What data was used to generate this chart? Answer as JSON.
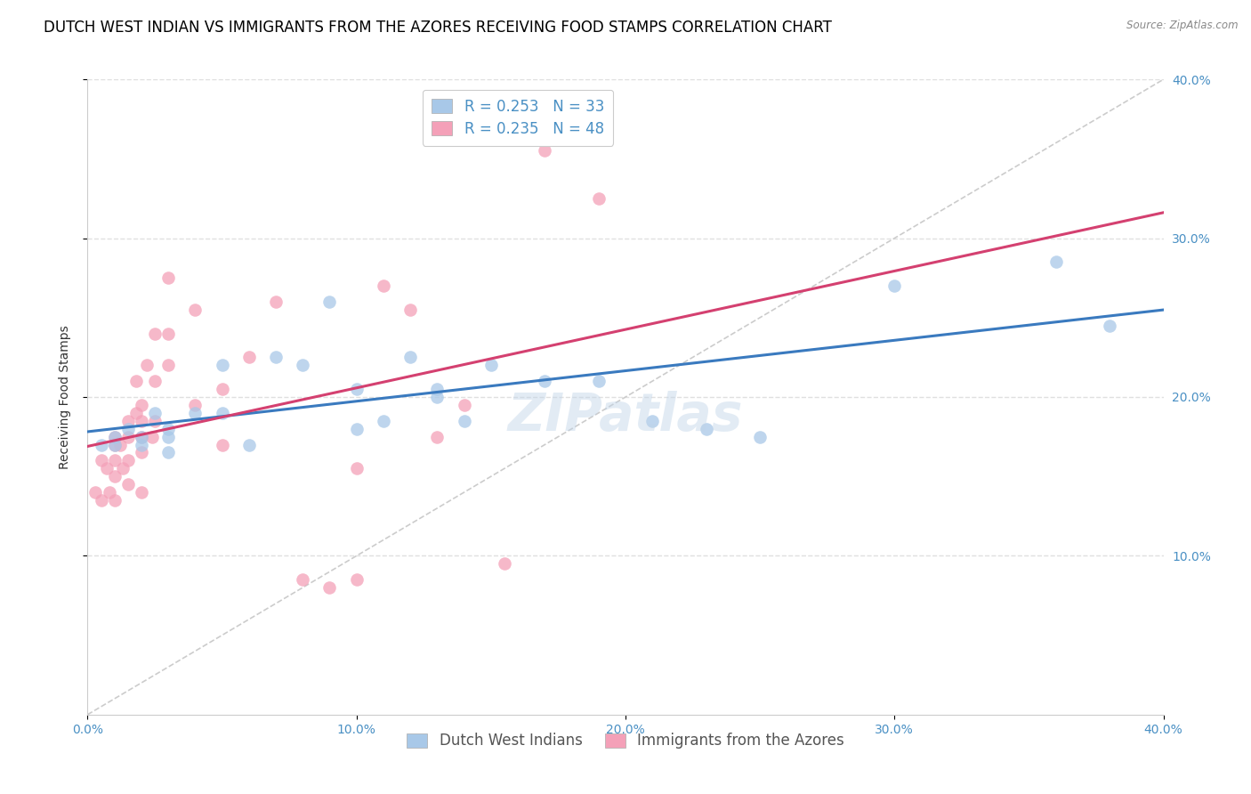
{
  "title": "DUTCH WEST INDIAN VS IMMIGRANTS FROM THE AZORES RECEIVING FOOD STAMPS CORRELATION CHART",
  "source": "Source: ZipAtlas.com",
  "ylabel": "Receiving Food Stamps",
  "xlim": [
    0.0,
    0.4
  ],
  "ylim": [
    0.0,
    0.4
  ],
  "xtick_vals": [
    0.0,
    0.1,
    0.2,
    0.3,
    0.4
  ],
  "ytick_vals": [
    0.1,
    0.2,
    0.3,
    0.4
  ],
  "blue_color": "#a8c8e8",
  "pink_color": "#f4a0b8",
  "blue_line_color": "#3a7abf",
  "pink_line_color": "#d44070",
  "blue_R": 0.253,
  "blue_N": 33,
  "pink_R": 0.235,
  "pink_N": 48,
  "diagonal_color": "#cccccc",
  "watermark": "ZIPatlas",
  "legend_label_blue": "Dutch West Indians",
  "legend_label_pink": "Immigrants from the Azores",
  "blue_scatter_x": [
    0.005,
    0.01,
    0.01,
    0.015,
    0.02,
    0.02,
    0.025,
    0.03,
    0.03,
    0.03,
    0.04,
    0.05,
    0.05,
    0.06,
    0.07,
    0.08,
    0.09,
    0.1,
    0.1,
    0.11,
    0.12,
    0.13,
    0.13,
    0.14,
    0.15,
    0.17,
    0.19,
    0.21,
    0.23,
    0.25,
    0.3,
    0.36,
    0.38
  ],
  "blue_scatter_y": [
    0.17,
    0.175,
    0.17,
    0.18,
    0.175,
    0.17,
    0.19,
    0.18,
    0.175,
    0.165,
    0.19,
    0.22,
    0.19,
    0.17,
    0.225,
    0.22,
    0.26,
    0.205,
    0.18,
    0.185,
    0.225,
    0.205,
    0.2,
    0.185,
    0.22,
    0.21,
    0.21,
    0.185,
    0.18,
    0.175,
    0.27,
    0.285,
    0.245
  ],
  "pink_scatter_x": [
    0.003,
    0.005,
    0.005,
    0.007,
    0.008,
    0.01,
    0.01,
    0.01,
    0.01,
    0.01,
    0.012,
    0.013,
    0.015,
    0.015,
    0.015,
    0.015,
    0.018,
    0.018,
    0.02,
    0.02,
    0.02,
    0.02,
    0.02,
    0.022,
    0.024,
    0.025,
    0.025,
    0.025,
    0.03,
    0.03,
    0.03,
    0.04,
    0.04,
    0.05,
    0.05,
    0.06,
    0.07,
    0.08,
    0.09,
    0.1,
    0.1,
    0.11,
    0.12,
    0.13,
    0.14,
    0.155,
    0.17,
    0.19
  ],
  "pink_scatter_y": [
    0.14,
    0.16,
    0.135,
    0.155,
    0.14,
    0.175,
    0.17,
    0.16,
    0.15,
    0.135,
    0.17,
    0.155,
    0.185,
    0.175,
    0.16,
    0.145,
    0.21,
    0.19,
    0.195,
    0.185,
    0.175,
    0.165,
    0.14,
    0.22,
    0.175,
    0.24,
    0.21,
    0.185,
    0.275,
    0.24,
    0.22,
    0.255,
    0.195,
    0.205,
    0.17,
    0.225,
    0.26,
    0.085,
    0.08,
    0.155,
    0.085,
    0.27,
    0.255,
    0.175,
    0.195,
    0.095,
    0.355,
    0.325
  ],
  "background_color": "#ffffff",
  "grid_color": "#e0e0e0",
  "title_fontsize": 12,
  "axis_fontsize": 10,
  "tick_fontsize": 10,
  "legend_fontsize": 12,
  "watermark_fontsize": 42,
  "watermark_color": "#c0d4e8",
  "watermark_alpha": 0.45
}
